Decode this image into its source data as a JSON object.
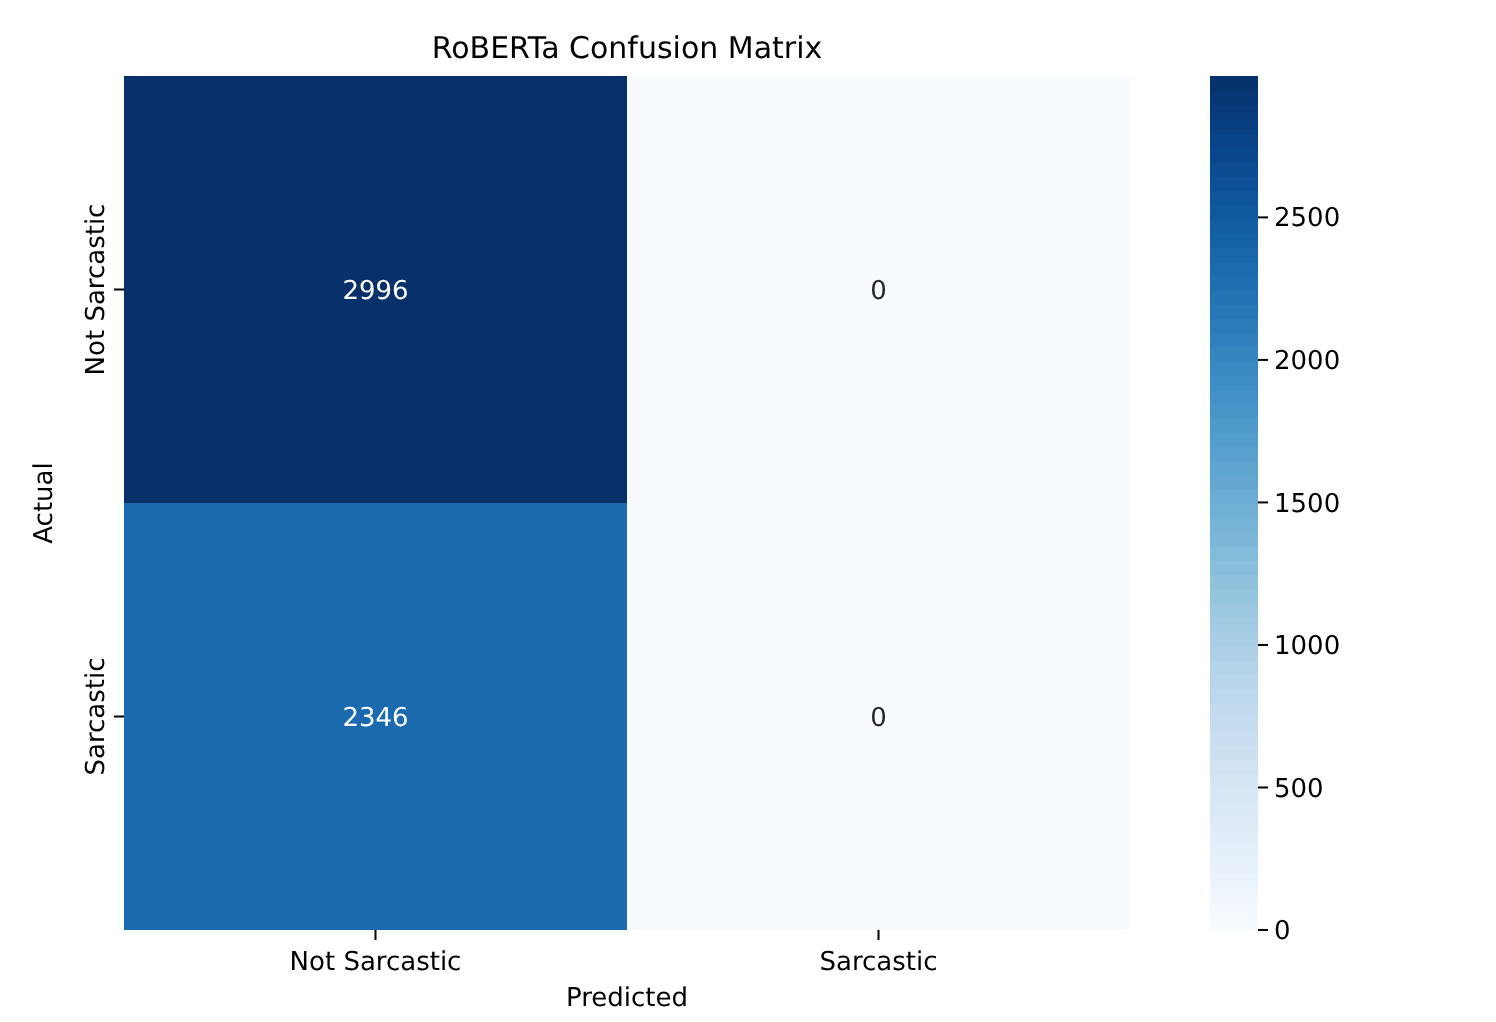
{
  "chart_data": {
    "type": "heatmap",
    "title": "RoBERTa Confusion Matrix",
    "xlabel": "Predicted",
    "ylabel": "Actual",
    "categories": [
      "Not Sarcastic",
      "Sarcastic"
    ],
    "y_categories": [
      "Not Sarcastic",
      "Sarcastic"
    ],
    "cells": [
      [
        2996,
        0
      ],
      [
        2346,
        0
      ]
    ],
    "data_labels": true,
    "clim": [
      0,
      2996
    ],
    "cticks": [
      0,
      500,
      1000,
      1500,
      2000,
      2500
    ]
  }
}
